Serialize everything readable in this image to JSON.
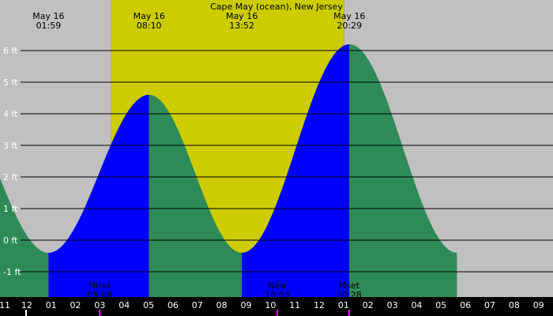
{
  "chart_data": {
    "type": "area",
    "title": "Cape May (ocean), New Jersey",
    "xlabel": "",
    "ylabel": "",
    "y_unit": "ft",
    "ylim": [
      -1.8,
      7.6
    ],
    "x_range_hours": [
      -1.0,
      33.0
    ],
    "y_ticks": [
      -1,
      0,
      1,
      2,
      3,
      4,
      5,
      6
    ],
    "y_tick_labels": [
      "-1 ft",
      "0 ft",
      "1 ft",
      "2 ft",
      "3 ft",
      "4 ft",
      "5 ft",
      "6 ft"
    ],
    "x_tick_labels": [
      "11",
      "12",
      "01",
      "02",
      "03",
      "04",
      "05",
      "06",
      "07",
      "08",
      "09",
      "10",
      "11",
      "12",
      "01",
      "02",
      "03",
      "04",
      "05",
      "06",
      "07",
      "08",
      "09"
    ],
    "tides": [
      {
        "date": "May 16",
        "time": "01:59",
        "height": -0.4
      },
      {
        "date": "May 16",
        "time": "08:10",
        "height": 4.6
      },
      {
        "date": "May 16",
        "time": "13:52",
        "height": -0.4
      },
      {
        "date": "May 16",
        "time": "20:29",
        "height": 6.2
      }
    ],
    "daylight": {
      "sunrise": "05:50",
      "sunset": "20:10"
    },
    "moon_events": [
      {
        "label": "Mrise",
        "time": "05:08"
      },
      {
        "label": "New",
        "time": "16:03"
      },
      {
        "label": "Mset",
        "time": "20:28"
      }
    ],
    "colors": {
      "night": "#c0c0c0",
      "day": "#cccc00",
      "rising": "#0000ff",
      "falling": "#2e8b57",
      "grid": "#000000",
      "axis_bar": "#000000",
      "moon_tick": "#ff00ff"
    }
  }
}
